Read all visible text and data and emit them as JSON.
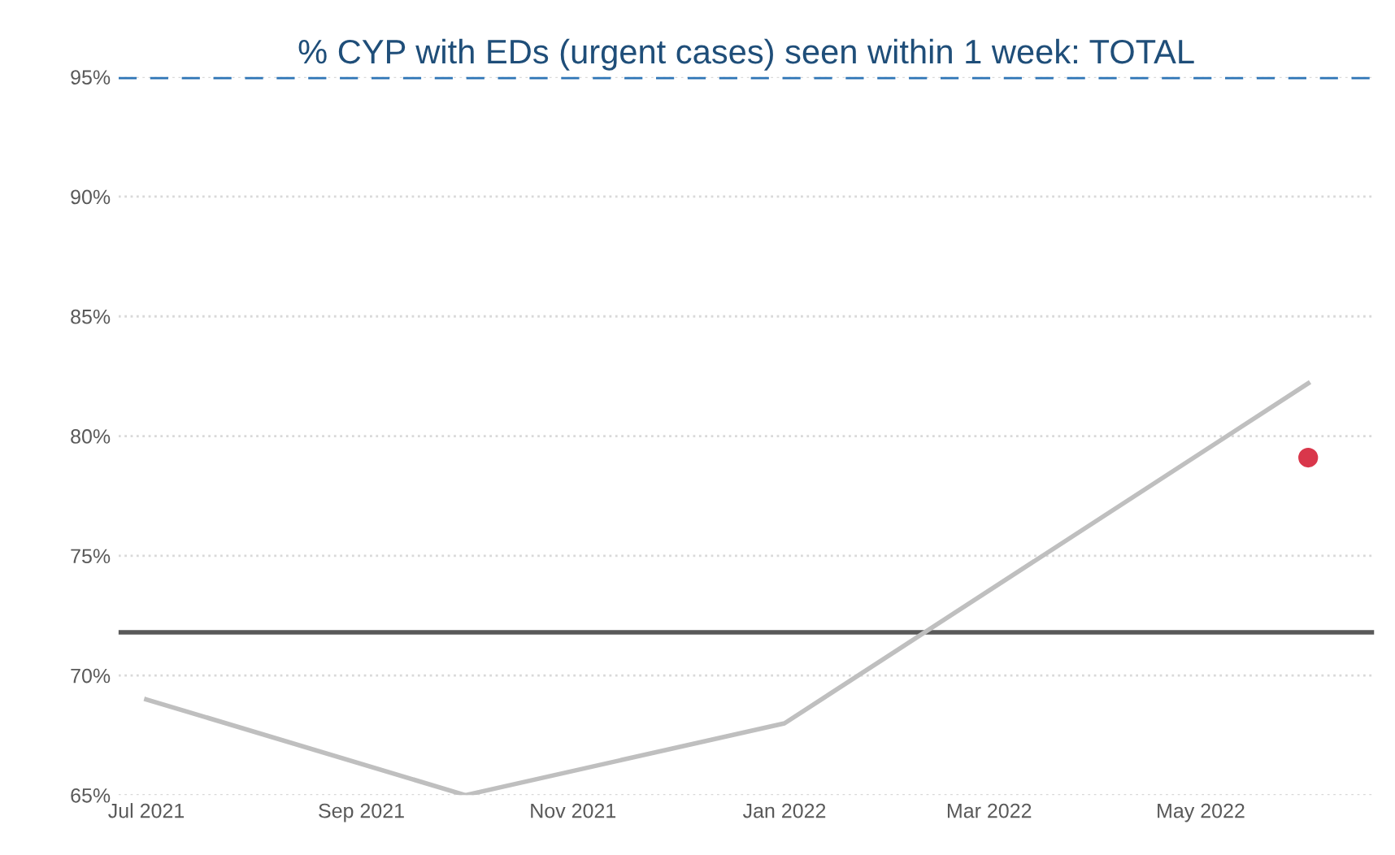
{
  "chart_data": {
    "type": "line",
    "title": "% CYP with EDs (urgent cases) seen within 1 week: TOTAL",
    "x": [
      "2021-07",
      "2021-10",
      "2022-01",
      "2022-06"
    ],
    "series": [
      {
        "color": "#bfbfbf",
        "marker": "none",
        "values": [
          69.0,
          65.0,
          68.0,
          82.2
        ]
      },
      {
        "type": "scatter",
        "color": "#d9374b",
        "marker": "circle",
        "x": [
          "2022-06"
        ],
        "values": [
          79.1
        ]
      }
    ],
    "xlim": [
      "2021-06-23",
      "2022-06-20"
    ],
    "xticks": [
      {
        "value": "2021-07",
        "label": "Jul 2021"
      },
      {
        "value": "2021-09",
        "label": "Sep 2021"
      },
      {
        "value": "2021-11",
        "label": "Nov 2021"
      },
      {
        "value": "2022-01",
        "label": "Jan 2022"
      },
      {
        "value": "2022-03",
        "label": "Mar 2022"
      },
      {
        "value": "2022-05",
        "label": "May 2022"
      }
    ],
    "ylim": [
      65,
      95
    ],
    "yticks": [
      {
        "value": 65,
        "label": "65%"
      },
      {
        "value": 70,
        "label": "70%"
      },
      {
        "value": 75,
        "label": "75%"
      },
      {
        "value": 80,
        "label": "80%"
      },
      {
        "value": 85,
        "label": "85%"
      },
      {
        "value": 90,
        "label": "90%"
      },
      {
        "value": 95,
        "label": "95%"
      }
    ],
    "ref_lines": [
      {
        "axis": "y",
        "value": 95,
        "color": "#2e75b6",
        "line_style": "dashed"
      },
      {
        "axis": "y",
        "value": 71.8,
        "color": "#595959",
        "line_style": "solid"
      }
    ],
    "grid": "y",
    "legend": false,
    "line_style": "solid"
  }
}
